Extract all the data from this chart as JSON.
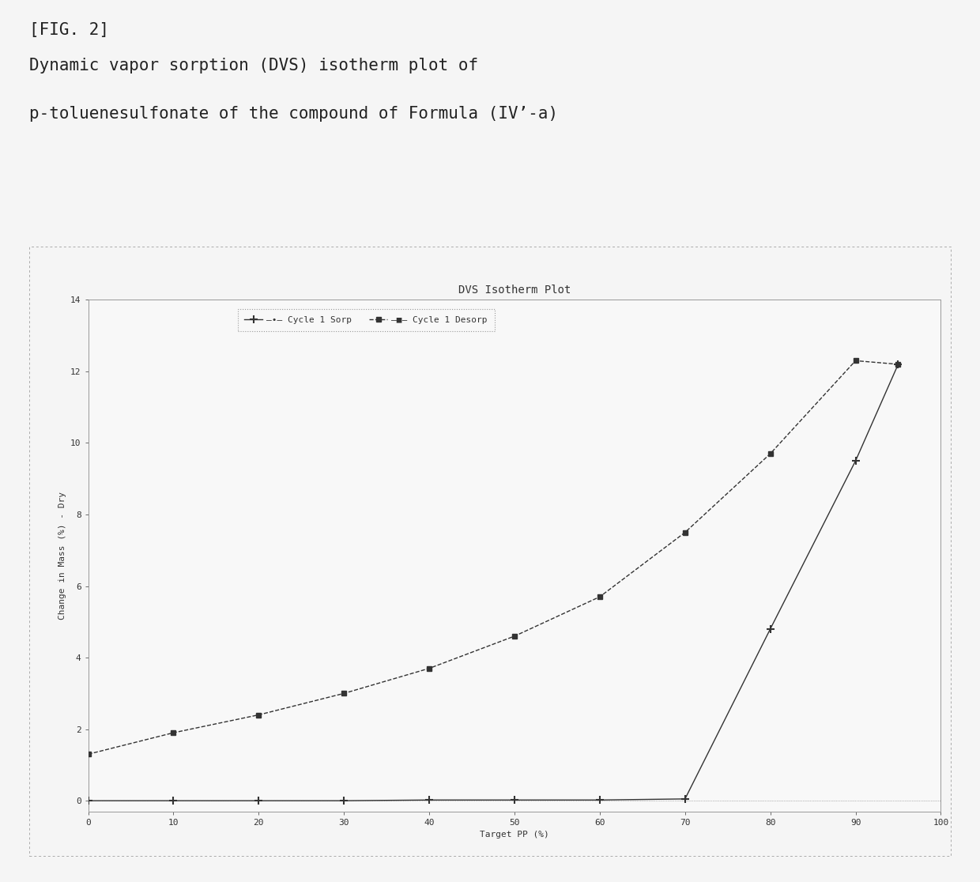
{
  "title": "DVS Isotherm Plot",
  "xlabel": "Target PP (%)",
  "ylabel": "Change in Mass (%) - Dry",
  "xlim": [
    0,
    100
  ],
  "ylim": [
    -0.3,
    14
  ],
  "xticks": [
    0,
    10,
    20,
    30,
    40,
    50,
    60,
    70,
    80,
    90,
    100
  ],
  "yticks": [
    0,
    2,
    4,
    6,
    8,
    10,
    12,
    14
  ],
  "sorp_x": [
    0,
    10,
    20,
    30,
    40,
    50,
    60,
    70,
    80,
    90,
    95
  ],
  "sorp_y": [
    0.0,
    0.0,
    0.0,
    0.0,
    0.02,
    0.02,
    0.02,
    0.05,
    4.8,
    9.5,
    12.2
  ],
  "desorp_x": [
    0,
    10,
    20,
    30,
    40,
    50,
    60,
    70,
    80,
    90,
    95
  ],
  "desorp_y": [
    1.3,
    1.9,
    2.4,
    3.0,
    3.7,
    4.6,
    5.7,
    7.5,
    9.7,
    12.3,
    12.2
  ],
  "sorp_color": "#333333",
  "desorp_color": "#333333",
  "background_color": "#f5f5f5",
  "plot_bg_color": "#f8f8f8",
  "border_color": "#999999",
  "legend_border_color": "#999999",
  "fig_label": "[FIG. 2]",
  "fig_caption_line1": "Dynamic vapor sorption (DVS) isotherm plot of",
  "fig_caption_line2": "p-toluenesulfonate of the compound of Formula (IV’-a)",
  "title_fontsize": 10,
  "axis_label_fontsize": 8,
  "tick_fontsize": 8,
  "legend_fontsize": 8,
  "caption_fontsize": 15
}
